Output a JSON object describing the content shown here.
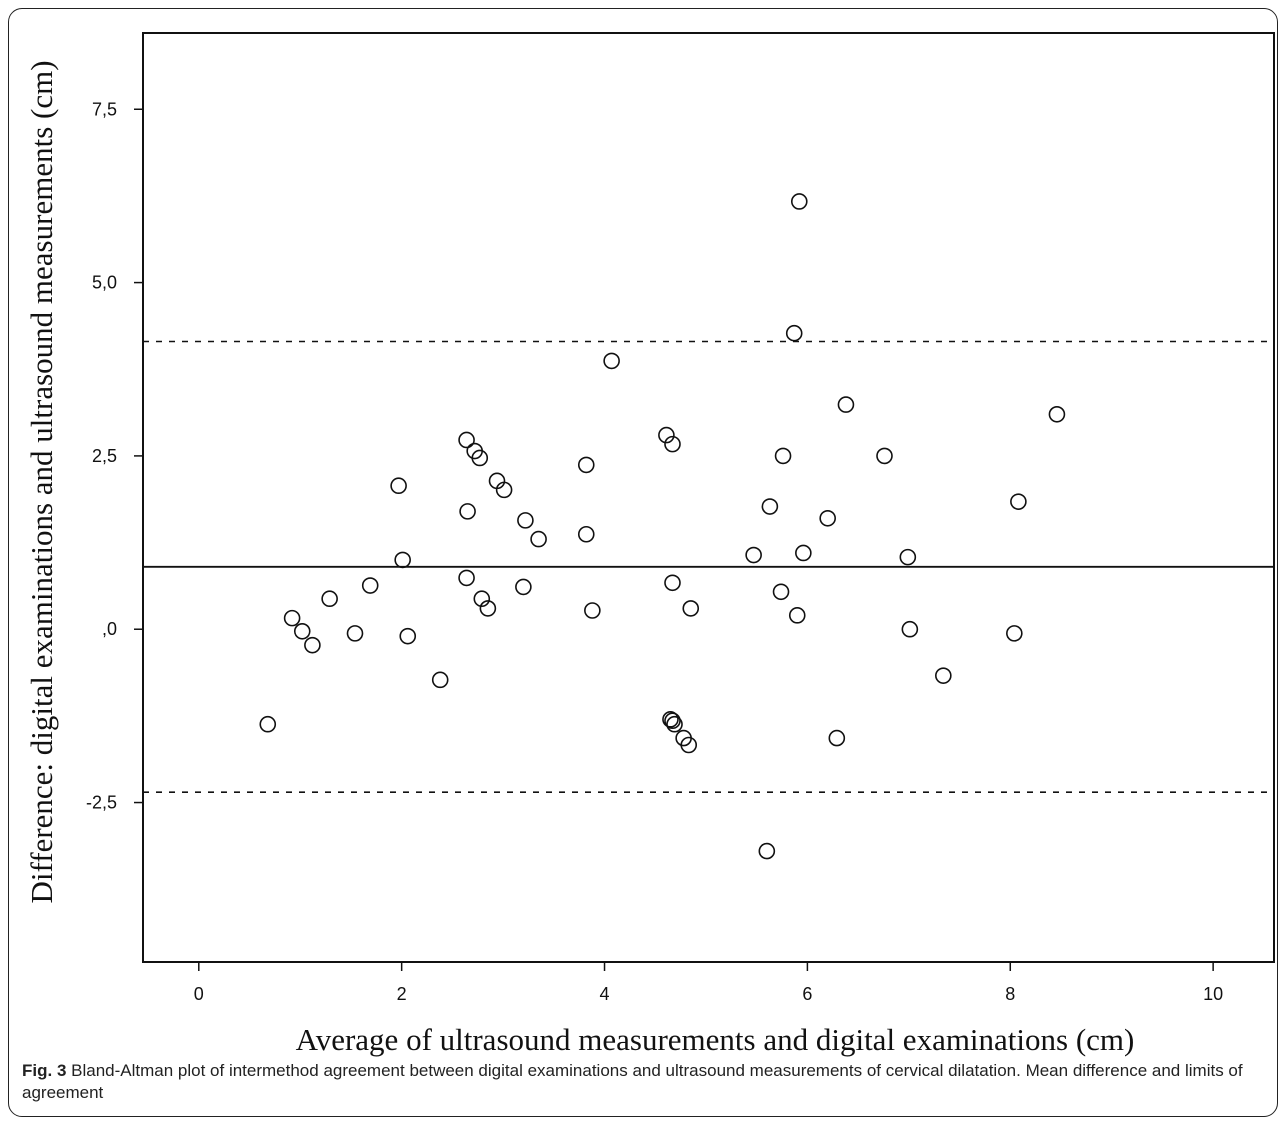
{
  "caption": {
    "label": "Fig. 3",
    "text": "Bland-Altman plot of intermethod agreement between digital examinations and ultrasound measurements of cervical dilatation. Mean difference and limits of agreement"
  },
  "chart_data": {
    "type": "scatter",
    "title": "",
    "xlabel": "Average of ultrasound measurements and digital examinations (cm)",
    "ylabel": "Difference: digital examinations and ultrasound measurements (cm)",
    "xlim": [
      -0.55,
      10.6
    ],
    "ylim": [
      -4.8,
      8.6
    ],
    "x_ticks": [
      0,
      2,
      4,
      6,
      8,
      10
    ],
    "x_tick_labels": [
      "0",
      "2",
      "4",
      "6",
      "8",
      "10"
    ],
    "y_ticks": [
      7.5,
      5.0,
      2.5,
      0,
      -2.5
    ],
    "y_tick_labels": [
      "7,5",
      "5,0",
      "2,5",
      ",0",
      "-2,5"
    ],
    "grid": false,
    "mean_difference": 0.9,
    "limits_of_agreement": [
      -2.35,
      4.15
    ],
    "marker": "open-circle",
    "colors": {
      "marker": "#111111",
      "lines": "#111111"
    },
    "points": [
      {
        "x": 0.68,
        "y": -1.37
      },
      {
        "x": 0.92,
        "y": 0.16
      },
      {
        "x": 1.02,
        "y": -0.03
      },
      {
        "x": 1.12,
        "y": -0.23
      },
      {
        "x": 1.29,
        "y": 0.44
      },
      {
        "x": 1.54,
        "y": -0.06
      },
      {
        "x": 1.69,
        "y": 0.63
      },
      {
        "x": 1.97,
        "y": 2.07
      },
      {
        "x": 2.01,
        "y": 1.0
      },
      {
        "x": 2.06,
        "y": -0.1
      },
      {
        "x": 2.38,
        "y": -0.73
      },
      {
        "x": 2.64,
        "y": 2.73
      },
      {
        "x": 2.65,
        "y": 1.7
      },
      {
        "x": 2.64,
        "y": 0.74
      },
      {
        "x": 2.72,
        "y": 2.57
      },
      {
        "x": 2.77,
        "y": 2.47
      },
      {
        "x": 2.79,
        "y": 0.44
      },
      {
        "x": 2.85,
        "y": 0.3
      },
      {
        "x": 2.94,
        "y": 2.14
      },
      {
        "x": 3.01,
        "y": 2.01
      },
      {
        "x": 3.2,
        "y": 0.61
      },
      {
        "x": 3.22,
        "y": 1.57
      },
      {
        "x": 3.35,
        "y": 1.3
      },
      {
        "x": 3.82,
        "y": 2.37
      },
      {
        "x": 3.82,
        "y": 1.37
      },
      {
        "x": 3.88,
        "y": 0.27
      },
      {
        "x": 4.07,
        "y": 3.87
      },
      {
        "x": 4.61,
        "y": 2.8
      },
      {
        "x": 4.65,
        "y": -1.3
      },
      {
        "x": 4.67,
        "y": 2.67
      },
      {
        "x": 4.67,
        "y": 0.67
      },
      {
        "x": 4.67,
        "y": -1.32
      },
      {
        "x": 4.69,
        "y": -1.37
      },
      {
        "x": 4.78,
        "y": -1.57
      },
      {
        "x": 4.83,
        "y": -1.67
      },
      {
        "x": 4.85,
        "y": 0.3
      },
      {
        "x": 5.47,
        "y": 1.07
      },
      {
        "x": 5.6,
        "y": -3.2
      },
      {
        "x": 5.63,
        "y": 1.77
      },
      {
        "x": 5.74,
        "y": 0.54
      },
      {
        "x": 5.76,
        "y": 2.5
      },
      {
        "x": 5.87,
        "y": 4.27
      },
      {
        "x": 5.9,
        "y": 0.2
      },
      {
        "x": 5.92,
        "y": 6.17
      },
      {
        "x": 5.96,
        "y": 1.1
      },
      {
        "x": 6.2,
        "y": 1.6
      },
      {
        "x": 6.29,
        "y": -1.57
      },
      {
        "x": 6.38,
        "y": 3.24
      },
      {
        "x": 6.76,
        "y": 2.5
      },
      {
        "x": 6.99,
        "y": 1.04
      },
      {
        "x": 7.01,
        "y": 0.0
      },
      {
        "x": 7.34,
        "y": -0.67
      },
      {
        "x": 8.04,
        "y": -0.06
      },
      {
        "x": 8.08,
        "y": 1.84
      },
      {
        "x": 8.46,
        "y": 3.1
      }
    ]
  }
}
